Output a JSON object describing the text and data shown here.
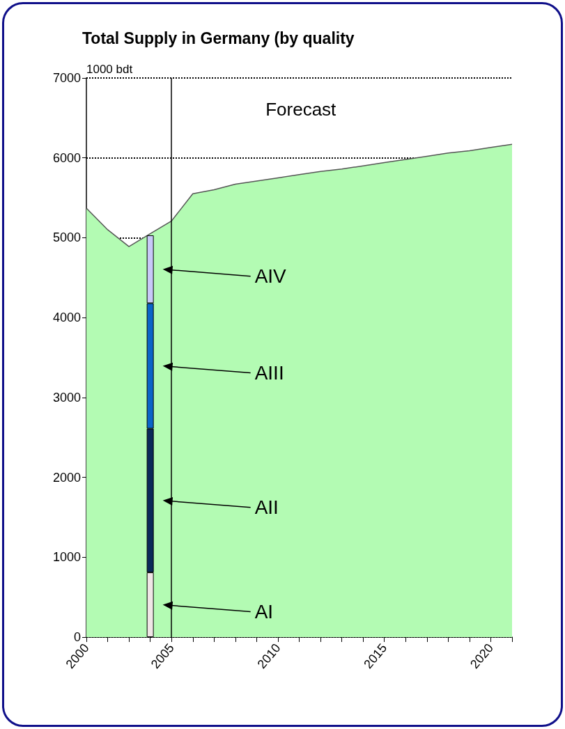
{
  "chart_data": {
    "type": "area",
    "title": "Total Supply in Germany (by quality",
    "ylabel": "1000 bdt",
    "categories": [
      "2000",
      null,
      null,
      null,
      "2005",
      null,
      null,
      null,
      null,
      "2010",
      null,
      null,
      null,
      null,
      "2015",
      null,
      null,
      null,
      null,
      "2020",
      null
    ],
    "series": [
      {
        "color": "#b3fbb3",
        "values": [
          5370,
          5100,
          4890,
          5050,
          5210,
          5550,
          5600,
          5670,
          5710,
          5750,
          5790,
          5830,
          5860,
          5900,
          5940,
          5980,
          6020,
          6060,
          6090,
          6130,
          6170
        ]
      },
      {
        "type": "bar",
        "name": "AI",
        "color": "#f0e6e6",
        "values": [
          null,
          null,
          null,
          810,
          null,
          null,
          null,
          null,
          null,
          null,
          null,
          null,
          null,
          null,
          null,
          null,
          null,
          null,
          null,
          null,
          null
        ],
        "base": [
          null,
          null,
          null,
          0,
          null,
          null,
          null,
          null,
          null,
          null,
          null,
          null,
          null,
          null,
          null,
          null,
          null,
          null,
          null,
          null,
          null
        ]
      },
      {
        "type": "bar",
        "name": "AII",
        "color": "#0a2a5a",
        "values": [
          null,
          null,
          null,
          1800,
          null,
          null,
          null,
          null,
          null,
          null,
          null,
          null,
          null,
          null,
          null,
          null,
          null,
          null,
          null,
          null,
          null
        ],
        "base": [
          null,
          null,
          null,
          810,
          null,
          null,
          null,
          null,
          null,
          null,
          null,
          null,
          null,
          null,
          null,
          null,
          null,
          null,
          null,
          null,
          null
        ]
      },
      {
        "type": "bar",
        "name": "AIII",
        "color": "#0a64c8",
        "values": [
          null,
          null,
          null,
          1570,
          null,
          null,
          null,
          null,
          null,
          null,
          null,
          null,
          null,
          null,
          null,
          null,
          null,
          null,
          null,
          null,
          null
        ],
        "base": [
          null,
          null,
          null,
          2610,
          null,
          null,
          null,
          null,
          null,
          null,
          null,
          null,
          null,
          null,
          null,
          null,
          null,
          null,
          null,
          null,
          null
        ]
      },
      {
        "type": "bar",
        "name": "AIV",
        "color": "#c8c8f8",
        "values": [
          null,
          null,
          null,
          850,
          null,
          null,
          null,
          null,
          null,
          null,
          null,
          null,
          null,
          null,
          null,
          null,
          null,
          null,
          null,
          null,
          null
        ],
        "base": [
          null,
          null,
          null,
          4180,
          null,
          null,
          null,
          null,
          null,
          null,
          null,
          null,
          null,
          null,
          null,
          null,
          null,
          null,
          null,
          null,
          null
        ]
      }
    ],
    "ylim": [
      0,
      7000
    ],
    "yticks": [
      0,
      1000,
      2000,
      3000,
      4000,
      5000,
      6000,
      7000
    ],
    "grid": "y",
    "legend": "bottom left",
    "ref_lines": [
      {
        "axis": "x",
        "value": "2005",
        "color": "#000000"
      }
    ],
    "annotations": [
      "Forecast"
    ]
  }
}
